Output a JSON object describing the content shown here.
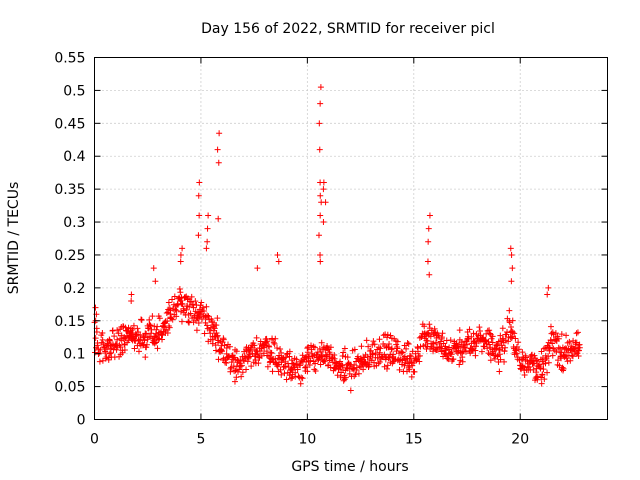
{
  "chart_data": {
    "type": "scatter",
    "title": "Day 156 of 2022, SRMTID for receiver picl",
    "xlabel": "GPS time / hours",
    "ylabel": "SRMTID / TECUs",
    "xlim": [
      0,
      24.1
    ],
    "ylim": [
      0,
      0.55
    ],
    "xticks": [
      0,
      5,
      10,
      15,
      20
    ],
    "xtick_labels": [
      "0",
      "5",
      "10",
      "15",
      "20"
    ],
    "yticks": [
      0,
      0.05,
      0.1,
      0.15,
      0.2,
      0.25,
      0.3,
      0.35,
      0.4,
      0.45,
      0.5,
      0.55
    ],
    "ytick_labels": [
      "0",
      "0.05",
      "0.1",
      "0.15",
      "0.2",
      "0.25",
      "0.3",
      "0.35",
      "0.4",
      "0.45",
      "0.5",
      "0.55"
    ],
    "grid": true,
    "marker": "+",
    "marker_color": "#ff0000",
    "baseline": [
      [
        0.0,
        0.12
      ],
      [
        0.5,
        0.11
      ],
      [
        1.0,
        0.12
      ],
      [
        1.5,
        0.13
      ],
      [
        2.0,
        0.12
      ],
      [
        2.5,
        0.125
      ],
      [
        3.0,
        0.13
      ],
      [
        3.5,
        0.15
      ],
      [
        4.0,
        0.175
      ],
      [
        4.5,
        0.17
      ],
      [
        5.0,
        0.16
      ],
      [
        5.5,
        0.14
      ],
      [
        6.0,
        0.11
      ],
      [
        6.5,
        0.085
      ],
      [
        7.0,
        0.09
      ],
      [
        7.5,
        0.1
      ],
      [
        8.0,
        0.11
      ],
      [
        8.5,
        0.1
      ],
      [
        9.0,
        0.08
      ],
      [
        9.5,
        0.08
      ],
      [
        10.0,
        0.09
      ],
      [
        10.5,
        0.1
      ],
      [
        11.0,
        0.09
      ],
      [
        11.5,
        0.08
      ],
      [
        12.0,
        0.075
      ],
      [
        12.5,
        0.08
      ],
      [
        13.0,
        0.1
      ],
      [
        13.5,
        0.105
      ],
      [
        14.0,
        0.1
      ],
      [
        14.5,
        0.095
      ],
      [
        15.0,
        0.085
      ],
      [
        15.5,
        0.13
      ],
      [
        16.0,
        0.12
      ],
      [
        16.5,
        0.1
      ],
      [
        17.0,
        0.105
      ],
      [
        17.5,
        0.11
      ],
      [
        18.0,
        0.12
      ],
      [
        18.5,
        0.12
      ],
      [
        19.0,
        0.1
      ],
      [
        19.5,
        0.14
      ],
      [
        20.0,
        0.09
      ],
      [
        20.5,
        0.09
      ],
      [
        21.0,
        0.075
      ],
      [
        21.5,
        0.12
      ],
      [
        22.0,
        0.1
      ],
      [
        22.5,
        0.105
      ],
      [
        22.8,
        0.11
      ]
    ],
    "spikes": [
      {
        "t": 0.1,
        "values": [
          0.17,
          0.16,
          0.15
        ]
      },
      {
        "t": 1.7,
        "values": [
          0.19,
          0.18
        ]
      },
      {
        "t": 2.8,
        "values": [
          0.23,
          0.21
        ]
      },
      {
        "t": 4.1,
        "values": [
          0.26,
          0.25,
          0.24
        ]
      },
      {
        "t": 4.9,
        "values": [
          0.36,
          0.34,
          0.31,
          0.28
        ]
      },
      {
        "t": 5.3,
        "values": [
          0.31,
          0.29,
          0.27,
          0.26
        ]
      },
      {
        "t": 5.8,
        "values": [
          0.435,
          0.41,
          0.39,
          0.305
        ]
      },
      {
        "t": 7.6,
        "values": [
          0.23
        ]
      },
      {
        "t": 8.6,
        "values": [
          0.25,
          0.24
        ]
      },
      {
        "t": 10.6,
        "values": [
          0.505,
          0.48,
          0.45,
          0.41,
          0.36,
          0.34,
          0.33,
          0.31,
          0.28,
          0.25,
          0.24
        ]
      },
      {
        "t": 10.8,
        "values": [
          0.36,
          0.35,
          0.33,
          0.3
        ]
      },
      {
        "t": 15.7,
        "values": [
          0.31,
          0.29,
          0.27,
          0.24,
          0.22
        ]
      },
      {
        "t": 19.6,
        "values": [
          0.26,
          0.25,
          0.23,
          0.21
        ]
      },
      {
        "t": 21.3,
        "values": [
          0.2,
          0.19
        ]
      }
    ]
  }
}
